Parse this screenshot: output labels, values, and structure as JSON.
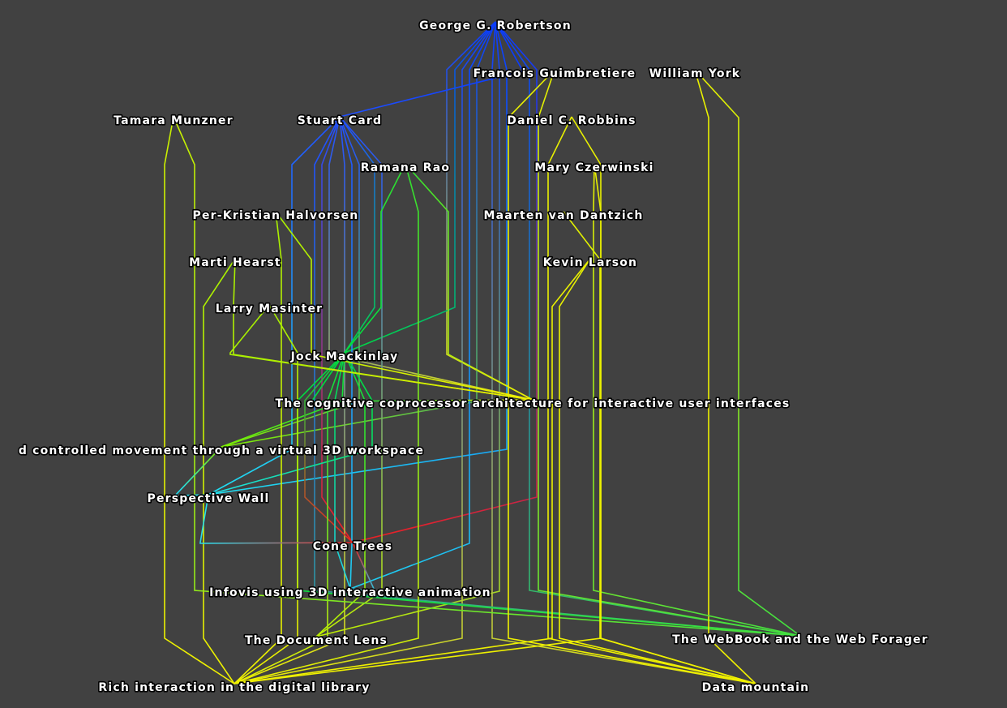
{
  "nodes": [
    {
      "id": "robertson",
      "label": "George G. Robertson",
      "color": "#0a3cff"
    },
    {
      "id": "guimbretiere",
      "label": "Francois Guimbretiere",
      "color": "#e8f000"
    },
    {
      "id": "york",
      "label": "William York",
      "color": "#e8f000"
    },
    {
      "id": "munzner",
      "label": "Tamara Munzner",
      "color": "#c8f000"
    },
    {
      "id": "card",
      "label": "Stuart Card",
      "color": "#2050ff"
    },
    {
      "id": "robbins",
      "label": "Daniel C. Robbins",
      "color": "#e8f000"
    },
    {
      "id": "rao",
      "label": "Ramana Rao",
      "color": "#30e030"
    },
    {
      "id": "czerwinski",
      "label": "Mary Czerwinski",
      "color": "#e8f000"
    },
    {
      "id": "halvorsen",
      "label": "Per-Kristian Halvorsen",
      "color": "#a8f000"
    },
    {
      "id": "dantzich",
      "label": "Maarten van Dantzich",
      "color": "#e0f000"
    },
    {
      "id": "hearst",
      "label": "Marti Hearst",
      "color": "#a8f000"
    },
    {
      "id": "larson",
      "label": "Kevin Larson",
      "color": "#e8f000"
    },
    {
      "id": "masinter",
      "label": "Larry Masinter",
      "color": "#a8f000"
    },
    {
      "id": "mackinlay",
      "label": "Jock Mackinlay",
      "color": "#00dd40"
    },
    {
      "id": "cognitive",
      "label": "The cognitive coprocessor architecture for interactive user interfaces",
      "color": "#f0f000"
    },
    {
      "id": "rapid",
      "label": "d controlled movement through a virtual 3D workspace",
      "color": "#80f000"
    },
    {
      "id": "perspective",
      "label": "Perspective Wall",
      "color": "#20e0f0"
    },
    {
      "id": "cone",
      "label": "Cone Trees",
      "color": "#f02020"
    },
    {
      "id": "infovis",
      "label": "Infovis using 3D interactive animation",
      "color": "#20d0f0"
    },
    {
      "id": "doclens",
      "label": "The Document Lens",
      "color": "#c0f000"
    },
    {
      "id": "webbook",
      "label": "The WebBook and the Web Forager",
      "color": "#40e040"
    },
    {
      "id": "rich",
      "label": "Rich interaction in the digital library",
      "color": "#f0f000"
    },
    {
      "id": "datamountain",
      "label": "Data mountain",
      "color": "#f0f000"
    }
  ],
  "edges": [
    [
      "robertson",
      "cognitive"
    ],
    [
      "robertson",
      "rapid"
    ],
    [
      "robertson",
      "perspective"
    ],
    [
      "robertson",
      "cone"
    ],
    [
      "robertson",
      "infovis"
    ],
    [
      "robertson",
      "doclens"
    ],
    [
      "robertson",
      "webbook"
    ],
    [
      "robertson",
      "rich"
    ],
    [
      "robertson",
      "datamountain"
    ],
    [
      "robertson",
      "card"
    ],
    [
      "robertson",
      "mackinlay"
    ],
    [
      "card",
      "cognitive"
    ],
    [
      "card",
      "rapid"
    ],
    [
      "card",
      "perspective"
    ],
    [
      "card",
      "cone"
    ],
    [
      "card",
      "infovis"
    ],
    [
      "card",
      "doclens"
    ],
    [
      "card",
      "webbook"
    ],
    [
      "card",
      "rich"
    ],
    [
      "card",
      "mackinlay"
    ],
    [
      "mackinlay",
      "cognitive"
    ],
    [
      "mackinlay",
      "rapid"
    ],
    [
      "mackinlay",
      "perspective"
    ],
    [
      "mackinlay",
      "cone"
    ],
    [
      "mackinlay",
      "infovis"
    ],
    [
      "mackinlay",
      "doclens"
    ],
    [
      "mackinlay",
      "webbook"
    ],
    [
      "mackinlay",
      "rich"
    ],
    [
      "rao",
      "rich"
    ],
    [
      "rao",
      "cognitive"
    ],
    [
      "rao",
      "mackinlay"
    ],
    [
      "halvorsen",
      "rich"
    ],
    [
      "halvorsen",
      "cognitive"
    ],
    [
      "hearst",
      "rich"
    ],
    [
      "hearst",
      "cognitive"
    ],
    [
      "masinter",
      "rich"
    ],
    [
      "masinter",
      "cognitive"
    ],
    [
      "munzner",
      "rich"
    ],
    [
      "munzner",
      "webbook"
    ],
    [
      "guimbretiere",
      "datamountain"
    ],
    [
      "guimbretiere",
      "webbook"
    ],
    [
      "york",
      "datamountain"
    ],
    [
      "york",
      "webbook"
    ],
    [
      "robbins",
      "datamountain"
    ],
    [
      "czerwinski",
      "datamountain"
    ],
    [
      "dantzich",
      "datamountain"
    ],
    [
      "larson",
      "datamountain"
    ],
    [
      "czerwinski",
      "webbook"
    ],
    [
      "robbins",
      "rich"
    ],
    [
      "larson",
      "rich"
    ],
    [
      "perspective",
      "cone"
    ],
    [
      "cone",
      "infovis"
    ],
    [
      "rapid",
      "perspective"
    ]
  ]
}
